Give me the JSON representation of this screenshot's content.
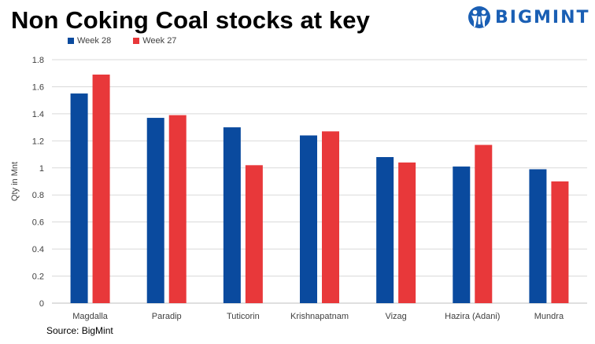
{
  "header": {
    "title": "Non Coking Coal stocks at key",
    "logo_text": "BIGMINT"
  },
  "source": "Source: BigMint",
  "colors": {
    "week28": "#0a4a9e",
    "week27": "#e8383a",
    "logo": "#1a5fb4",
    "grid": "#d9d9d9"
  },
  "chart_data": {
    "type": "bar",
    "title": "",
    "xlabel": "",
    "ylabel": "Qty in Mnt",
    "ylim": [
      0,
      1.8
    ],
    "yticks": [
      "0",
      "0.2",
      "0.4",
      "0.6",
      "0.8",
      "1",
      "1.2",
      "1.4",
      "1.6",
      "1.8"
    ],
    "grid": true,
    "legend_position": "top-left",
    "categories": [
      "Magdalla",
      "Paradip",
      "Tuticorin",
      "Krishnapatnam",
      "Vizag",
      "Hazira (Adani)",
      "Mundra"
    ],
    "series": [
      {
        "name": "Week 28",
        "color": "#0a4a9e",
        "values": [
          1.55,
          1.37,
          1.3,
          1.24,
          1.08,
          1.01,
          0.99
        ]
      },
      {
        "name": "Week 27",
        "color": "#e8383a",
        "values": [
          1.69,
          1.39,
          1.02,
          1.27,
          1.04,
          1.17,
          0.9
        ]
      }
    ]
  }
}
